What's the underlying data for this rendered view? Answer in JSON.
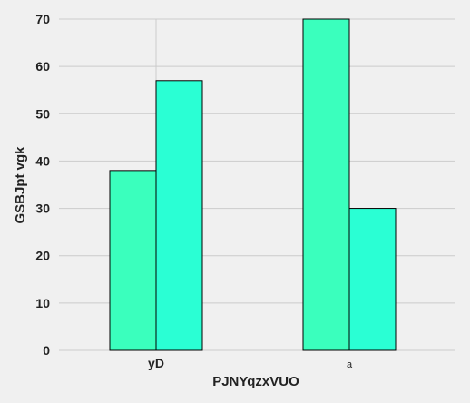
{
  "chart_data": {
    "type": "bar",
    "categories": [
      "yD",
      "a"
    ],
    "series": [
      {
        "values": [
          38,
          70
        ],
        "color": "#3affbd"
      },
      {
        "values": [
          57,
          30
        ],
        "color": "#2affd4"
      }
    ],
    "xlabel": "PJNYqzxVUO",
    "ylabel": "GSBJpt vgk",
    "ylim": [
      0,
      70
    ],
    "yticks": [
      0,
      10,
      20,
      30,
      40,
      50,
      60,
      70
    ],
    "grid": true,
    "background": "#f0f0f0"
  }
}
